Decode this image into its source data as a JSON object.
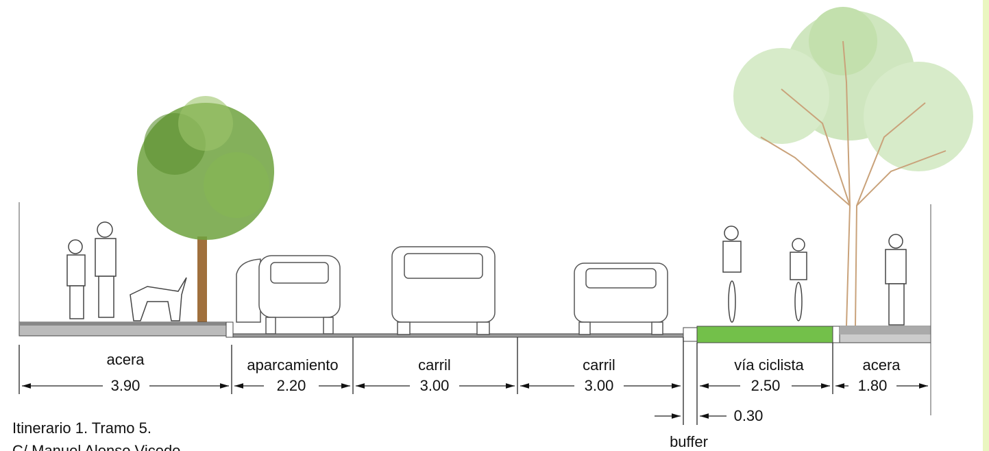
{
  "segments": [
    {
      "label": "acera",
      "width": "3.90"
    },
    {
      "label": "aparcamiento",
      "width": "2.20"
    },
    {
      "label": "carril",
      "width": "3.00"
    },
    {
      "label": "carril",
      "width": "3.00"
    },
    {
      "label": "buffer",
      "width": "0.30"
    },
    {
      "label": "vía ciclista",
      "width": "2.50"
    },
    {
      "label": "acera",
      "width": "1.80"
    }
  ],
  "caption": {
    "line1": "Itinerario 1. Tramo 5.",
    "line2": "C/ Manuel Alonso Vicedo"
  }
}
